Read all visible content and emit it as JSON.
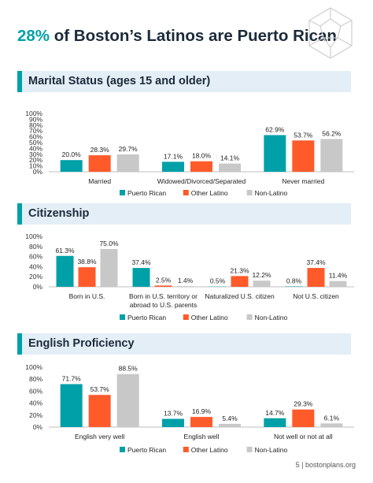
{
  "page": {
    "title_accent": "28%",
    "title_rest": " of Boston’s Latinos are Puerto Rican",
    "footer": "5 | bostonplans.org",
    "logo_icon": "dodecahedron-icon"
  },
  "colors": {
    "puerto_rican": "#00a0a8",
    "other_latino": "#ff5a2a",
    "non_latino": "#c8c8c8",
    "header_band": "#e3eef7",
    "title_accent": "#00a0a8"
  },
  "sections": [
    {
      "title": "Marital Status (ages 15 and older)"
    },
    {
      "title": "Citizenship"
    },
    {
      "title": "English Proficiency"
    }
  ],
  "chart_data": [
    {
      "type": "bar",
      "title": "Marital Status (ages 15 and older)",
      "categories": [
        [
          "Married"
        ],
        [
          "Widowed/Divorced/Separated"
        ],
        [
          "Never married"
        ]
      ],
      "series": [
        {
          "name": "Puerto Rican",
          "values": [
            20.0,
            17.1,
            62.9
          ],
          "labels": [
            "20.0%",
            "17.1%",
            "62.9%"
          ]
        },
        {
          "name": "Other Latino",
          "values": [
            28.3,
            18.0,
            53.7
          ],
          "labels": [
            "28.3%",
            "18.0%",
            "53.7%"
          ]
        },
        {
          "name": "Non-Latino",
          "values": [
            29.7,
            14.1,
            56.2
          ],
          "labels": [
            "29.7%",
            "14.1%",
            "56.2%"
          ]
        }
      ],
      "yticks": [
        "0%",
        "10%",
        "20%",
        "30%",
        "40%",
        "50%",
        "60%",
        "70%",
        "80%",
        "90%",
        "100%"
      ],
      "ylim": [
        0,
        100
      ],
      "legend_position": "bottom"
    },
    {
      "type": "bar",
      "title": "Citizenship",
      "categories": [
        [
          "Born in U.S."
        ],
        [
          "Born in U.S. territory or",
          "abroad to U.S. parents"
        ],
        [
          "Naturalized U.S. citizen"
        ],
        [
          "Not U.S. citizen"
        ]
      ],
      "series": [
        {
          "name": "Puerto Rican",
          "values": [
            61.3,
            37.4,
            0.5,
            0.8
          ],
          "labels": [
            "61.3%",
            "37.4%",
            "0.5%",
            "0.8%"
          ]
        },
        {
          "name": "Other Latino",
          "values": [
            38.8,
            2.5,
            21.3,
            37.4
          ],
          "labels": [
            "38.8%",
            "2.5%",
            "21.3%",
            "37.4%"
          ]
        },
        {
          "name": "Non-Latino",
          "values": [
            75.0,
            1.4,
            12.2,
            11.4
          ],
          "labels": [
            "75.0%",
            "1.4%",
            "12.2%",
            "11.4%"
          ]
        }
      ],
      "yticks": [
        "0%",
        "20%",
        "40%",
        "60%",
        "80%",
        "100%"
      ],
      "ylim": [
        0,
        100
      ],
      "legend_position": "bottom"
    },
    {
      "type": "bar",
      "title": "English Proficiency",
      "categories": [
        [
          "English very well"
        ],
        [
          "English well"
        ],
        [
          "Not well or not at all"
        ]
      ],
      "series": [
        {
          "name": "Puerto Rican",
          "values": [
            71.7,
            13.7,
            14.7
          ],
          "labels": [
            "71.7%",
            "13.7%",
            "14.7%"
          ]
        },
        {
          "name": "Other Latino",
          "values": [
            53.7,
            16.9,
            29.3
          ],
          "labels": [
            "53.7%",
            "16.9%",
            "29.3%"
          ]
        },
        {
          "name": "Non-Latino",
          "values": [
            88.5,
            5.4,
            6.1
          ],
          "labels": [
            "88.5%",
            "5.4%",
            "6.1%"
          ]
        }
      ],
      "yticks": [
        "0%",
        "20%",
        "40%",
        "60%",
        "80%",
        "100%"
      ],
      "ylim": [
        0,
        100
      ],
      "legend_position": "bottom"
    }
  ]
}
